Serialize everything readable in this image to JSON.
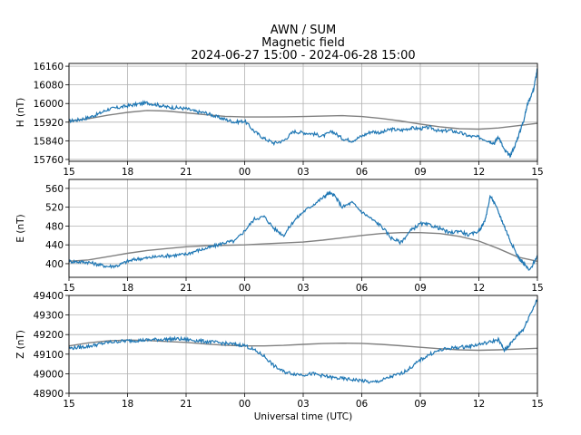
{
  "title": {
    "line1": "AWN / SUM",
    "line2": "Magnetic field",
    "line3": "2024-06-27 15:00 - 2024-06-28 15:00"
  },
  "xlabel": "Universal time (UTC)",
  "colors": {
    "measured": "#1f77b4",
    "baseline": "#808080"
  },
  "chart_data": [
    {
      "type": "line",
      "ylabel": "H (nT)",
      "x_ticks": [
        "15",
        "18",
        "21",
        "00",
        "03",
        "06",
        "09",
        "12",
        "15"
      ],
      "x_tick_hours": [
        0,
        3,
        6,
        9,
        12,
        15,
        18,
        21,
        24
      ],
      "xlim": [
        0,
        24
      ],
      "ylim": [
        15752,
        16172
      ],
      "y_ticks": [
        15760,
        15840,
        15920,
        16000,
        16080,
        16160
      ],
      "grid": true,
      "series": [
        {
          "role": "measured",
          "x": [
            0,
            0.5,
            1,
            1.5,
            2,
            2.5,
            3,
            3.5,
            4,
            4.5,
            5,
            5.5,
            6,
            6.5,
            7,
            7.5,
            8,
            8.5,
            9,
            9.5,
            10,
            10.5,
            11,
            11.5,
            12,
            12.5,
            13,
            13.5,
            14,
            14.5,
            15,
            15.5,
            16,
            16.5,
            17,
            17.5,
            18,
            18.5,
            19,
            19.5,
            20,
            20.5,
            21,
            21.5,
            21.8,
            22,
            22.3,
            22.6,
            22.9,
            23.1,
            23.3,
            23.5,
            23.8,
            24
          ],
          "y": [
            15925,
            15930,
            15940,
            15955,
            15975,
            15982,
            15990,
            15997,
            16003,
            15995,
            15985,
            15982,
            15978,
            15965,
            15960,
            15945,
            15932,
            15920,
            15925,
            15880,
            15850,
            15830,
            15840,
            15880,
            15875,
            15870,
            15860,
            15880,
            15850,
            15840,
            15860,
            15880,
            15875,
            15890,
            15885,
            15895,
            15892,
            15898,
            15880,
            15885,
            15875,
            15860,
            15855,
            15840,
            15830,
            15860,
            15800,
            15775,
            15830,
            15880,
            15930,
            16000,
            16060,
            16150
          ]
        },
        {
          "role": "baseline",
          "x": [
            0,
            1,
            2,
            3,
            4,
            5,
            6,
            7,
            8,
            9,
            10,
            11,
            12,
            13,
            14,
            15,
            16,
            17,
            18,
            19,
            20,
            21,
            22,
            23,
            24
          ],
          "y": [
            15925,
            15935,
            15950,
            15962,
            15970,
            15968,
            15960,
            15952,
            15945,
            15942,
            15942,
            15943,
            15944,
            15946,
            15948,
            15944,
            15936,
            15925,
            15912,
            15900,
            15892,
            15890,
            15895,
            15905,
            15915
          ]
        }
      ]
    },
    {
      "type": "line",
      "ylabel": "E (nT)",
      "x_ticks": [
        "15",
        "18",
        "21",
        "00",
        "03",
        "06",
        "09",
        "12",
        "15"
      ],
      "x_tick_hours": [
        0,
        3,
        6,
        9,
        12,
        15,
        18,
        21,
        24
      ],
      "xlim": [
        0,
        24
      ],
      "ylim": [
        371,
        579
      ],
      "y_ticks": [
        400,
        440,
        480,
        520,
        560
      ],
      "grid": true,
      "series": [
        {
          "role": "measured",
          "x": [
            0,
            0.5,
            1,
            1.5,
            2,
            2.5,
            3,
            3.5,
            4,
            4.5,
            5,
            5.5,
            6,
            6.5,
            7,
            7.5,
            8,
            8.5,
            9,
            9.5,
            10,
            10.5,
            11,
            11.5,
            12,
            12.5,
            13,
            13.3,
            13.6,
            14,
            14.5,
            15,
            15.5,
            16,
            16.5,
            17,
            17.5,
            18,
            18.5,
            19,
            19.5,
            20,
            20.5,
            21,
            21.3,
            21.6,
            22,
            22.3,
            22.6,
            23,
            23.3,
            23.6,
            24
          ],
          "y": [
            405,
            404,
            403,
            398,
            394,
            396,
            405,
            410,
            412,
            415,
            417,
            418,
            420,
            427,
            432,
            438,
            445,
            448,
            470,
            495,
            500,
            475,
            460,
            490,
            510,
            525,
            540,
            550,
            545,
            520,
            530,
            510,
            495,
            480,
            455,
            445,
            470,
            485,
            482,
            475,
            465,
            470,
            460,
            470,
            490,
            545,
            510,
            480,
            450,
            415,
            400,
            385,
            418
          ]
        },
        {
          "role": "baseline",
          "x": [
            0,
            1,
            2,
            3,
            4,
            5,
            6,
            7,
            8,
            9,
            10,
            11,
            12,
            13,
            14,
            15,
            16,
            17,
            18,
            19,
            20,
            21,
            22,
            23,
            24
          ],
          "y": [
            405,
            408,
            415,
            422,
            428,
            432,
            436,
            438,
            439,
            440,
            442,
            444,
            446,
            450,
            455,
            460,
            464,
            466,
            466,
            464,
            458,
            448,
            432,
            414,
            405
          ]
        }
      ]
    },
    {
      "type": "line",
      "ylabel": "Z (nT)",
      "x_ticks": [
        "15",
        "18",
        "21",
        "00",
        "03",
        "06",
        "09",
        "12",
        "15"
      ],
      "x_tick_hours": [
        0,
        3,
        6,
        9,
        12,
        15,
        18,
        21,
        24
      ],
      "xlim": [
        0,
        24
      ],
      "ylim": [
        48900,
        49400
      ],
      "y_ticks": [
        48900,
        49000,
        49100,
        49200,
        49300,
        49400
      ],
      "grid": true,
      "series": [
        {
          "role": "measured",
          "x": [
            0,
            0.5,
            1,
            1.5,
            2,
            2.5,
            3,
            3.5,
            4,
            4.5,
            5,
            5.5,
            6,
            6.5,
            7,
            7.5,
            8,
            8.5,
            9,
            9.5,
            10,
            10.5,
            11,
            11.5,
            12,
            12.5,
            13,
            13.5,
            14,
            14.5,
            15,
            15.5,
            16,
            16.5,
            17,
            17.5,
            18,
            18.5,
            19,
            19.5,
            20,
            20.5,
            21,
            21.5,
            22,
            22.3,
            22.6,
            23,
            23.3,
            23.6,
            24
          ],
          "y": [
            49130,
            49135,
            49140,
            49150,
            49160,
            49165,
            49168,
            49170,
            49172,
            49175,
            49176,
            49178,
            49175,
            49170,
            49165,
            49160,
            49155,
            49150,
            49145,
            49120,
            49090,
            49040,
            49010,
            49000,
            48995,
            49000,
            48990,
            48980,
            48975,
            48970,
            48965,
            48955,
            48965,
            48985,
            49000,
            49030,
            49070,
            49100,
            49120,
            49130,
            49135,
            49140,
            49150,
            49160,
            49175,
            49120,
            49150,
            49200,
            49230,
            49300,
            49380
          ]
        },
        {
          "role": "baseline",
          "x": [
            0,
            1,
            2,
            3,
            4,
            5,
            6,
            7,
            8,
            9,
            10,
            11,
            12,
            13,
            14,
            15,
            16,
            17,
            18,
            19,
            20,
            21,
            22,
            23,
            24
          ],
          "y": [
            49142,
            49158,
            49168,
            49172,
            49170,
            49165,
            49160,
            49152,
            49146,
            49142,
            49142,
            49145,
            49150,
            49154,
            49156,
            49155,
            49150,
            49143,
            49135,
            49128,
            49122,
            49120,
            49122,
            49126,
            49130
          ]
        }
      ]
    }
  ]
}
